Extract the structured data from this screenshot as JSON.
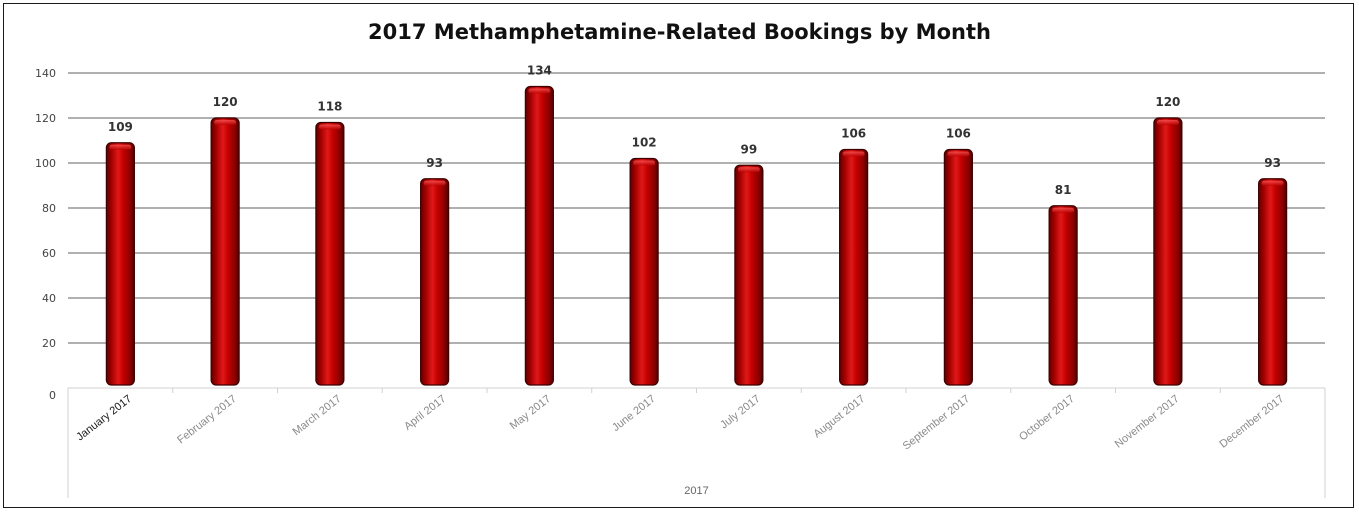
{
  "chart_data": {
    "type": "bar",
    "title": "2017 Methamphetamine-Related Bookings by Month",
    "categories": [
      "January 2017",
      "February 2017",
      "March 2017",
      "April 2017",
      "May 2017",
      "June 2017",
      "July 2017",
      "August 2017",
      "September 2017",
      "October 2017",
      "November 2017",
      "December 2017"
    ],
    "group_label": "2017",
    "values": [
      109,
      120,
      118,
      93,
      134,
      102,
      99,
      106,
      106,
      81,
      120,
      93
    ],
    "ylim": [
      0,
      140
    ],
    "yticks": [
      0,
      20,
      40,
      60,
      80,
      100,
      120,
      140
    ],
    "grid": true,
    "legend": "none",
    "bar_color": "#c00000",
    "gridline_color": "#b0b0b0"
  }
}
